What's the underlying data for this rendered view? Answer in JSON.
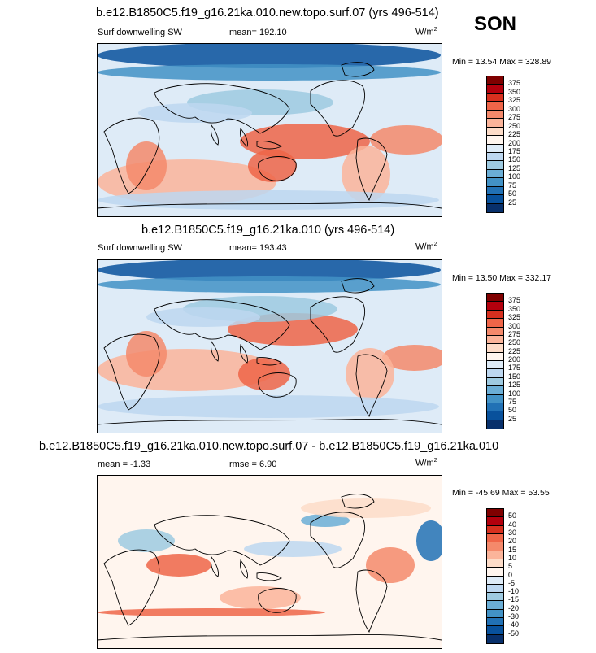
{
  "season": "SON",
  "panels": [
    {
      "title": "b.e12.B1850C5.f19_g16.21ka.010.new.topo.surf.07 (yrs 496-514)",
      "variable": "Surf downwelling SW",
      "mean": "mean= 192.10",
      "rmse": "",
      "units": "W/m",
      "units_sup": "2",
      "minmax": "Min =  13.54 Max = 328.89",
      "colorbar_labels": [
        "375",
        "350",
        "325",
        "300",
        "275",
        "250",
        "225",
        "200",
        "175",
        "150",
        "125",
        "100",
        "75",
        "50",
        "25"
      ],
      "colorbar_colors": [
        "#7f0000",
        "#b3000d",
        "#d7301f",
        "#ef6548",
        "#f4896b",
        "#fbb49a",
        "#fddcc8",
        "#fff5ee",
        "#deebf7",
        "#bdd7f0",
        "#9ecae1",
        "#6baed6",
        "#4292c6",
        "#2171b5",
        "#08519c",
        "#08306b"
      ]
    },
    {
      "title": "b.e12.B1850C5.f19_g16.21ka.010 (yrs 496-514)",
      "variable": "Surf downwelling SW",
      "mean": "mean= 193.43",
      "rmse": "",
      "units": "W/m",
      "units_sup": "2",
      "minmax": "Min =  13.50 Max = 332.17",
      "colorbar_labels": [
        "375",
        "350",
        "325",
        "300",
        "275",
        "250",
        "225",
        "200",
        "175",
        "150",
        "125",
        "100",
        "75",
        "50",
        "25"
      ],
      "colorbar_colors": [
        "#7f0000",
        "#b3000d",
        "#d7301f",
        "#ef6548",
        "#f4896b",
        "#fbb49a",
        "#fddcc8",
        "#fff5ee",
        "#deebf7",
        "#bdd7f0",
        "#9ecae1",
        "#6baed6",
        "#4292c6",
        "#2171b5",
        "#08519c",
        "#08306b"
      ]
    },
    {
      "title": "b.e12.B1850C5.f19_g16.21ka.010.new.topo.surf.07 - b.e12.B1850C5.f19_g16.21ka.010",
      "variable": "",
      "mean": "mean =  -1.33",
      "rmse": "rmse =   6.90",
      "units": "W/m",
      "units_sup": "2",
      "minmax": "Min = -45.69 Max =  53.55",
      "colorbar_labels": [
        "50",
        "40",
        "30",
        "20",
        "15",
        "10",
        "5",
        "0",
        "-5",
        "-10",
        "-15",
        "-20",
        "-30",
        "-40",
        "-50"
      ],
      "colorbar_colors": [
        "#7f0000",
        "#b3000d",
        "#d7301f",
        "#ef6548",
        "#f4896b",
        "#fbb49a",
        "#fddcc8",
        "#fff5ee",
        "#deebf7",
        "#bdd7f0",
        "#9ecae1",
        "#6baed6",
        "#4292c6",
        "#2171b5",
        "#08519c",
        "#08306b"
      ]
    }
  ]
}
